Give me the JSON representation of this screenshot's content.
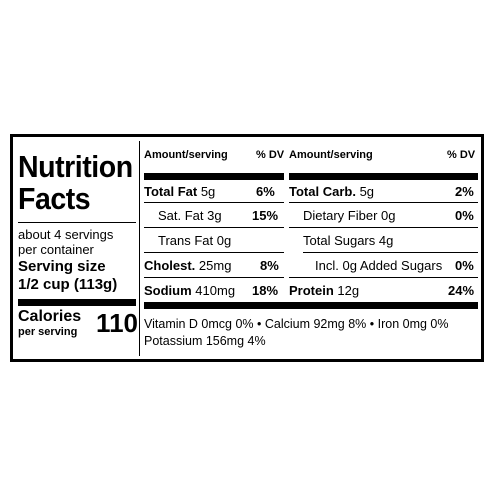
{
  "left": {
    "title_line1": "Nutrition",
    "title_line2": "Facts",
    "servings_line1": "about 4 servings",
    "servings_line2": "per container",
    "serving_size_label": "Serving size",
    "serving_size_value": "1/2 cup (113g)",
    "calories_label": "Calories",
    "calories_sub": "per serving",
    "calories_value": "110"
  },
  "col1": {
    "header_amount": "Amount/serving",
    "header_dv": "% DV",
    "rows": [
      {
        "name": "Total Fat",
        "amount": "5g",
        "dv": "6%"
      },
      {
        "name": "Sat. Fat",
        "amount": "3g",
        "dv": "15%"
      },
      {
        "name": "Trans Fat",
        "amount": "0g",
        "dv": ""
      },
      {
        "name": "Cholest.",
        "amount": "25mg",
        "dv": "8%"
      },
      {
        "name": "Sodium",
        "amount": "410mg",
        "dv": "18%"
      }
    ]
  },
  "col2": {
    "header_amount": "Amount/serving",
    "header_dv": "% DV",
    "rows": [
      {
        "name": "Total Carb.",
        "amount": "5g",
        "dv": "2%"
      },
      {
        "name": "Dietary Fiber",
        "amount": "0g",
        "dv": "0%"
      },
      {
        "name": "Total Sugars",
        "amount": "4g",
        "dv": ""
      },
      {
        "name": "Incl.",
        "amount": "0g Added Sugars",
        "dv": "0%"
      },
      {
        "name": "Protein",
        "amount": "12g",
        "dv": "24%"
      }
    ]
  },
  "footer": {
    "line1": "Vitamin D 0mcg 0% • Calcium 92mg 8% • Iron 0mg 0%",
    "line2": "Potassium 156mg 4%"
  }
}
